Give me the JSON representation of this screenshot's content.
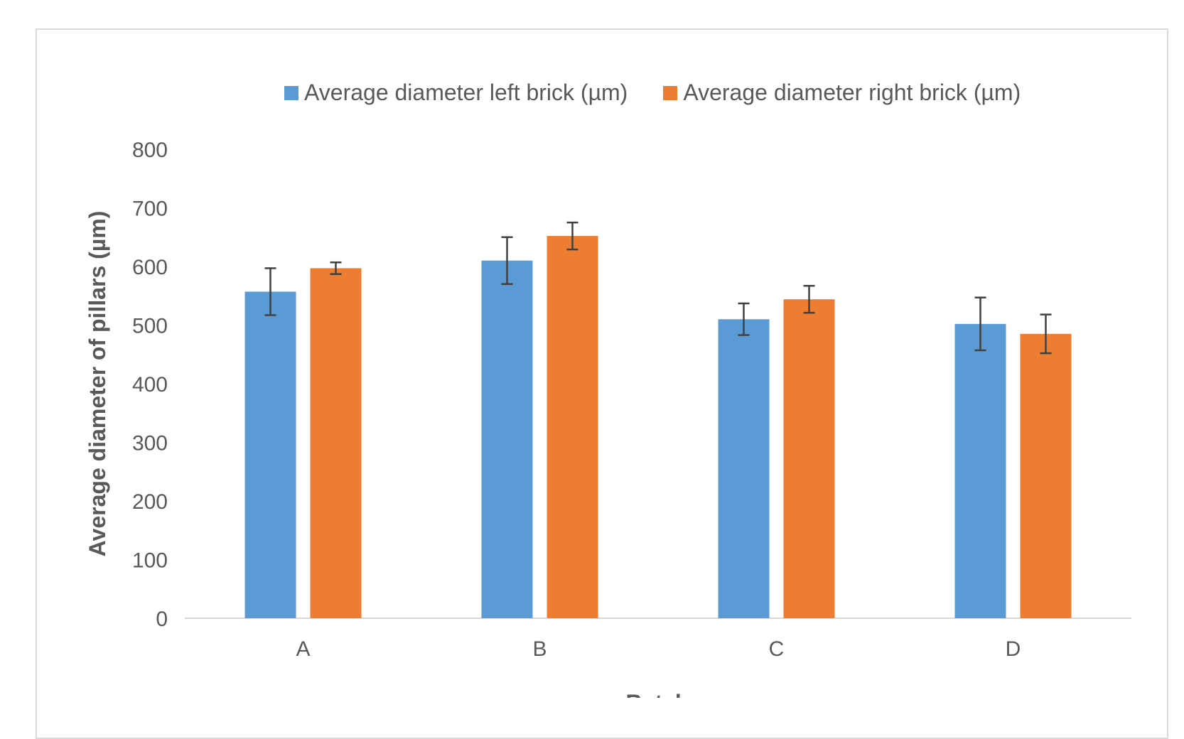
{
  "chart_data": {
    "type": "bar",
    "title": "",
    "xlabel": "Batch",
    "ylabel": "Average diameter of pillars (µm)",
    "categories": [
      "A",
      "B",
      "C",
      "D"
    ],
    "ylim": [
      0,
      800
    ],
    "yticks": [
      0,
      100,
      200,
      300,
      400,
      500,
      600,
      700,
      800
    ],
    "grid": false,
    "legend_position": "top-right",
    "series": [
      {
        "name": "Average diameter left brick (µm)",
        "color": "#5b9bd5",
        "values": [
          557,
          610,
          510,
          502
        ],
        "errors": [
          40,
          40,
          27,
          45
        ]
      },
      {
        "name": "Average diameter right brick (µm)",
        "color": "#ed7d31",
        "values": [
          597,
          652,
          544,
          485
        ],
        "errors": [
          10,
          23,
          23,
          33
        ]
      }
    ]
  }
}
